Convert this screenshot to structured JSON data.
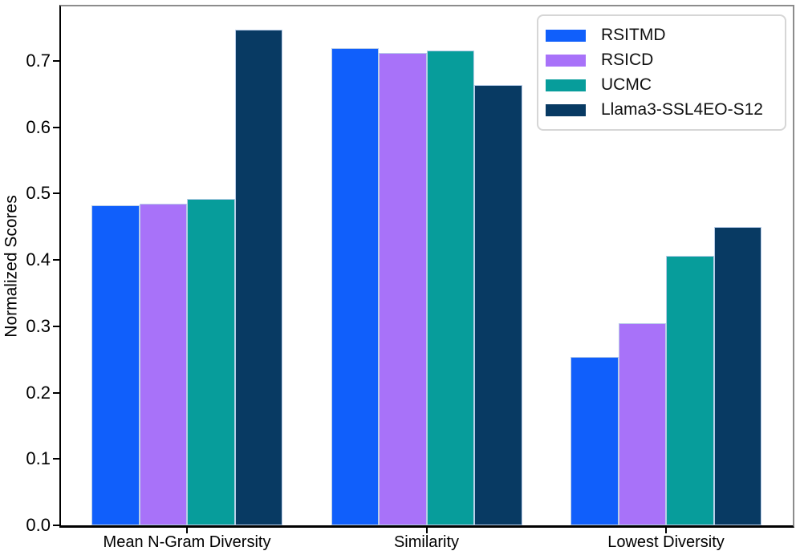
{
  "chart_data": {
    "type": "bar",
    "title": "",
    "xlabel": "",
    "ylabel": "Normalized Scores",
    "categories": [
      "Mean N-Gram Diversity",
      "Similarity",
      "Lowest Diversity"
    ],
    "series": [
      {
        "name": "RSITMD",
        "color": "#105ffb",
        "values": [
          0.482,
          0.719,
          0.254
        ]
      },
      {
        "name": "RSICD",
        "color": "#a872f9",
        "values": [
          0.485,
          0.712,
          0.305
        ]
      },
      {
        "name": "UCMC",
        "color": "#079d9b",
        "values": [
          0.492,
          0.716,
          0.406
        ]
      },
      {
        "name": "Llama3-SSL4EO-S12",
        "color": "#083a63",
        "values": [
          0.747,
          0.664,
          0.45
        ]
      }
    ],
    "ylim": [
      0,
      0.782
    ],
    "yticks": [
      0.0,
      0.1,
      0.2,
      0.3,
      0.4,
      0.5,
      0.6,
      0.7
    ],
    "legend_position": "upper right",
    "grid": false,
    "bar_edge_color": "#b9cde8",
    "spine_colors": {
      "left": "#000000",
      "bottom": "#000000",
      "top": "#8c8c8c",
      "right": "#8c8c8c"
    }
  }
}
